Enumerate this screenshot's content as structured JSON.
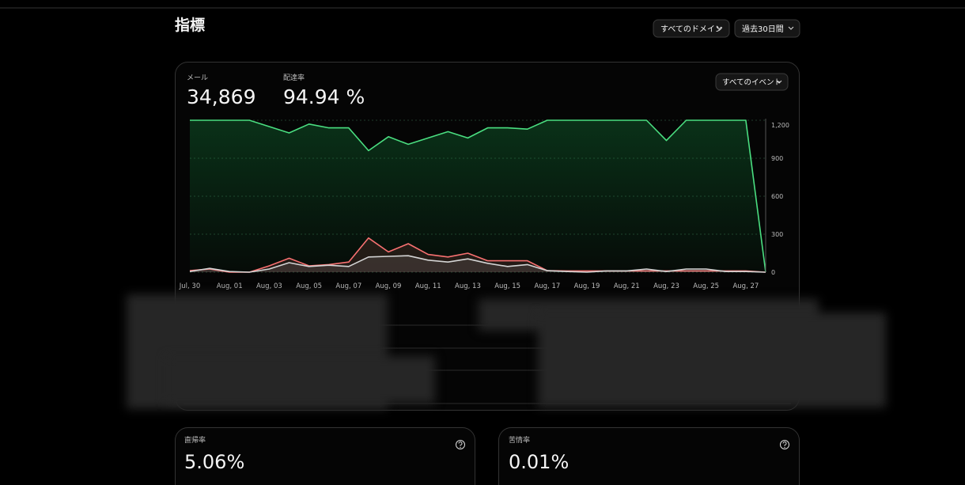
{
  "header": {
    "title": "指標",
    "filters": [
      "すべてのドメイン",
      "過去30日間"
    ]
  },
  "overview": {
    "stats": [
      {
        "label": "メール",
        "value": "34,869"
      },
      {
        "label": "配達率",
        "value": "94.94 %"
      }
    ],
    "event_filter": "すべてのイベント"
  },
  "chart_data": {
    "type": "line",
    "categories": [
      "Jul, 30",
      null,
      "Aug, 01",
      null,
      "Aug, 03",
      null,
      "Aug, 05",
      null,
      "Aug, 07",
      null,
      "Aug, 09",
      null,
      "Aug, 11",
      null,
      "Aug, 13",
      null,
      "Aug, 15",
      null,
      "Aug, 17",
      null,
      "Aug, 19",
      null,
      "Aug, 21",
      null,
      "Aug, 23",
      null,
      "Aug, 25",
      null,
      "Aug, 27",
      null
    ],
    "series": [
      {
        "color": "#4ade80",
        "values": [
          1200,
          1200,
          1200,
          1200,
          1150,
          1100,
          1170,
          1140,
          1140,
          960,
          1070,
          1010,
          1060,
          1110,
          1060,
          1140,
          1140,
          1130,
          1200,
          1200,
          1200,
          1200,
          1200,
          1200,
          1040,
          1200,
          1200,
          1200,
          1200,
          0
        ]
      },
      {
        "color": "#f87171",
        "values": [
          12,
          25,
          0,
          0,
          50,
          110,
          50,
          60,
          80,
          270,
          160,
          225,
          140,
          120,
          150,
          90,
          90,
          90,
          12,
          10,
          10,
          10,
          10,
          10,
          10,
          10,
          10,
          10,
          10,
          0
        ]
      },
      {
        "color": "#d4d4d4",
        "values": [
          5,
          30,
          5,
          0,
          25,
          75,
          45,
          55,
          45,
          120,
          125,
          130,
          95,
          80,
          105,
          70,
          45,
          60,
          12,
          5,
          0,
          10,
          10,
          25,
          5,
          25,
          25,
          5,
          5,
          0
        ]
      }
    ],
    "ylim": [
      0,
      1200
    ],
    "yticks": [
      0,
      300,
      600,
      900,
      {
        "value": 1200,
        "label": "1,200"
      }
    ],
    "grid": true
  },
  "metrics": [
    {
      "label": "直帰率",
      "value": "5.06%"
    },
    {
      "label": "苦情率",
      "value": "0.01%"
    }
  ]
}
